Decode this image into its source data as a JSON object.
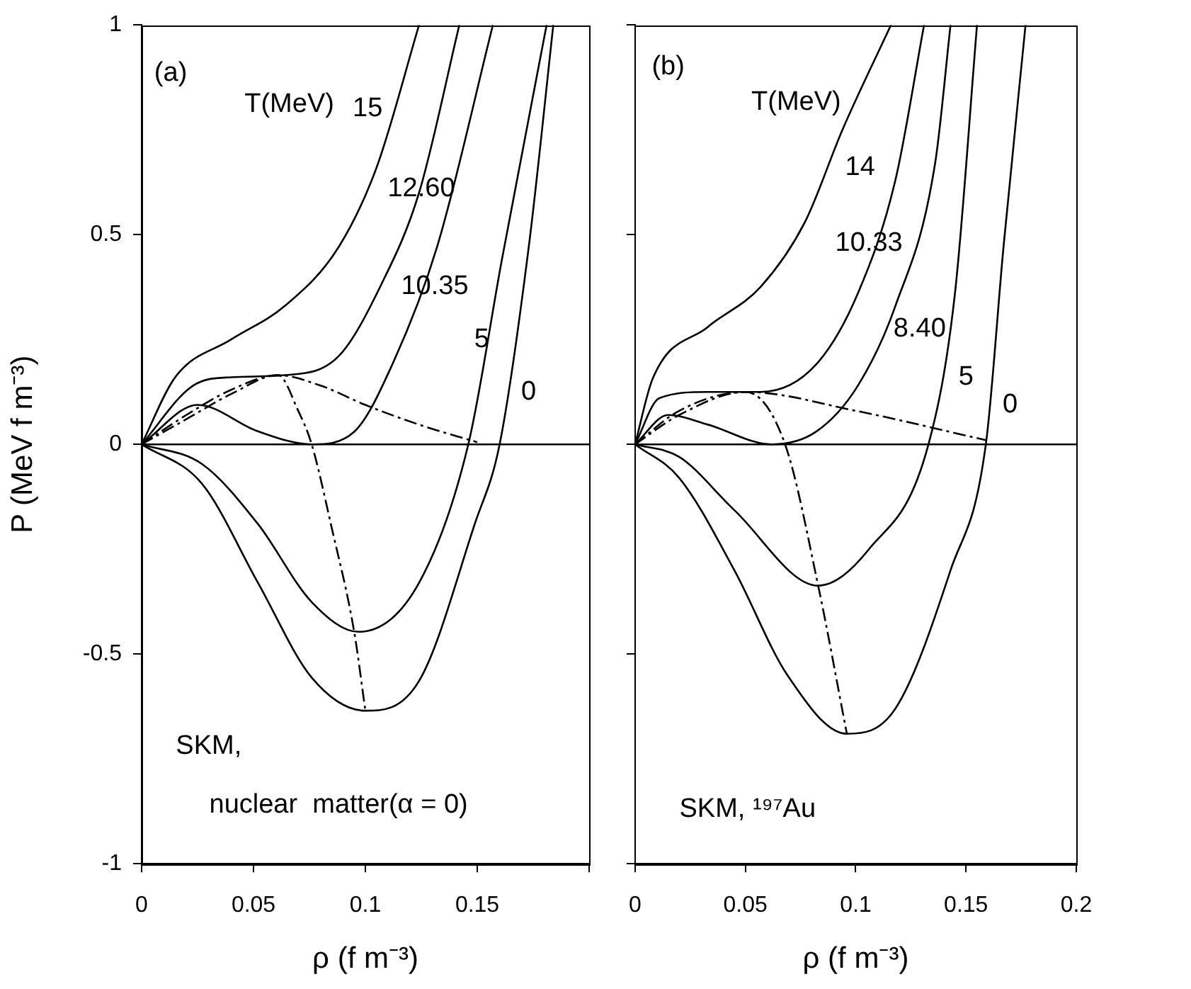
{
  "chart_data": [
    {
      "type": "line",
      "xlabel": "ρ (f m⁻³)",
      "ylabel": "P (MeV f m⁻³)",
      "xlim": [
        0,
        0.2
      ],
      "xticks": [
        0,
        0.05,
        0.1,
        0.15,
        {
          "value": 0.2,
          "label": null
        }
      ],
      "ylim": [
        -1,
        1
      ],
      "yticks": [
        -1,
        -0.5,
        0,
        0.5,
        1
      ],
      "grid": false,
      "legend": false,
      "marker": "none",
      "series": [
        {
          "name": "15",
          "color": "#000000",
          "line_style": "solid",
          "x": [
            0,
            0.015,
            0.04,
            0.064,
            0.088,
            0.105,
            0.124
          ],
          "values": [
            0,
            0.16,
            0.25,
            0.33,
            0.47,
            0.66,
            1
          ]
        },
        {
          "name": "12.60",
          "color": "#000000",
          "line_style": "solid",
          "x": [
            0,
            0.023,
            0.04,
            0.064,
            0.088,
            0.107,
            0.124,
            0.142
          ],
          "values": [
            0,
            0.14,
            0.16,
            0.165,
            0.21,
            0.38,
            0.6,
            1
          ]
        },
        {
          "name": "10.35",
          "color": "#000000",
          "line_style": "solid",
          "x": [
            0,
            0.025,
            0.052,
            0.076,
            0.095,
            0.112,
            0.132,
            0.157
          ],
          "values": [
            0,
            0.094,
            0.031,
            0,
            0.03,
            0.19,
            0.47,
            1
          ]
        },
        {
          "name": "5",
          "color": "#000000",
          "line_style": "solid",
          "x": [
            0,
            0.027,
            0.052,
            0.076,
            0.097,
            0.124,
            0.146,
            0.161,
            0.181
          ],
          "values": [
            0,
            -0.047,
            -0.19,
            -0.376,
            -0.447,
            -0.33,
            0,
            0.44,
            1
          ]
        },
        {
          "name": "0",
          "color": "#000000",
          "line_style": "solid",
          "x": [
            0,
            0.027,
            0.052,
            0.076,
            0.1,
            0.124,
            0.149,
            0.16,
            0.173,
            0.184
          ],
          "values": [
            0,
            -0.094,
            -0.33,
            -0.556,
            -0.635,
            -0.564,
            -0.188,
            0,
            0.47,
            1
          ]
        },
        {
          "color": "#000000",
          "line_style": "dashed",
          "x": [
            0,
            0.02,
            0.04,
            0.061,
            0.08,
            0.1,
            0.124,
            0.15
          ],
          "values": [
            0,
            0.07,
            0.13,
            0.165,
            0.14,
            0.094,
            0.047,
            0.005
          ]
        },
        {
          "color": "#000000",
          "line_style": "dashed",
          "x": [
            0,
            0.02,
            0.04,
            0.061,
            0.07,
            0.076,
            0.085,
            0.095,
            0.1
          ],
          "values": [
            0,
            0.06,
            0.12,
            0.165,
            0.08,
            0,
            -0.2,
            -0.447,
            -0.635
          ]
        }
      ],
      "ref_lines": [
        {
          "axis": "y",
          "value": 0,
          "color": "#000000",
          "line_style": "solid"
        }
      ],
      "annotations": [
        "(a)",
        "T(MeV)",
        "SKM,",
        "nuclear  matter(α = 0)"
      ]
    },
    {
      "type": "line",
      "xlabel": "ρ (f m⁻³)",
      "xlim": [
        0,
        0.2
      ],
      "xticks": [
        0,
        0.05,
        0.1,
        0.15,
        0.2
      ],
      "ylim": [
        -1,
        1
      ],
      "yticks": [
        {
          "value": -1,
          "label": null
        },
        {
          "value": -0.5,
          "label": null
        },
        {
          "value": 0,
          "label": null
        },
        {
          "value": 0.5,
          "label": null
        },
        {
          "value": 1,
          "label": null
        }
      ],
      "tick_labels": "x",
      "grid": false,
      "legend": false,
      "marker": "none",
      "series": [
        {
          "name": "14",
          "color": "#000000",
          "line_style": "solid",
          "x": [
            0,
            0.008,
            0.033,
            0.057,
            0.077,
            0.094,
            0.116
          ],
          "values": [
            0,
            0.157,
            0.28,
            0.376,
            0.53,
            0.75,
            1
          ]
        },
        {
          "name": "10.33",
          "color": "#000000",
          "line_style": "solid",
          "x": [
            0,
            0.011,
            0.033,
            0.057,
            0.082,
            0.101,
            0.118,
            0.131
          ],
          "values": [
            0,
            0.11,
            0.125,
            0.125,
            0.19,
            0.36,
            0.63,
            1
          ]
        },
        {
          "name": "8.40",
          "color": "#000000",
          "line_style": "solid",
          "x": [
            0,
            0.015,
            0.033,
            0.062,
            0.082,
            0.101,
            0.118,
            0.136,
            0.143
          ],
          "values": [
            0,
            0.07,
            0.047,
            0,
            0.03,
            0.14,
            0.33,
            0.67,
            1
          ]
        },
        {
          "name": "5",
          "color": "#000000",
          "line_style": "solid",
          "x": [
            0,
            0.02,
            0.045,
            0.083,
            0.106,
            0.133,
            0.145,
            0.155
          ],
          "values": [
            0,
            -0.03,
            -0.157,
            -0.337,
            -0.25,
            0,
            0.36,
            1
          ]
        },
        {
          "name": "0",
          "color": "#000000",
          "line_style": "solid",
          "x": [
            0,
            0.02,
            0.045,
            0.069,
            0.096,
            0.118,
            0.143,
            0.159,
            0.167,
            0.177
          ],
          "values": [
            0,
            -0.08,
            -0.3,
            -0.55,
            -0.69,
            -0.63,
            -0.3,
            0,
            0.47,
            1
          ]
        },
        {
          "color": "#000000",
          "line_style": "dashed",
          "x": [
            0,
            0.02,
            0.05,
            0.1,
            0.159
          ],
          "values": [
            0,
            0.08,
            0.125,
            0.08,
            0.01
          ]
        },
        {
          "color": "#000000",
          "line_style": "dashed",
          "x": [
            0,
            0.02,
            0.05,
            0.068,
            0.083,
            0.096
          ],
          "values": [
            0,
            0.07,
            0.125,
            0,
            -0.337,
            -0.69
          ]
        }
      ],
      "ref_lines": [
        {
          "axis": "y",
          "value": 0,
          "color": "#000000",
          "line_style": "solid"
        }
      ],
      "annotations": [
        "(b)",
        "T(MeV)",
        "SKM, ¹⁹⁷Au"
      ]
    }
  ]
}
